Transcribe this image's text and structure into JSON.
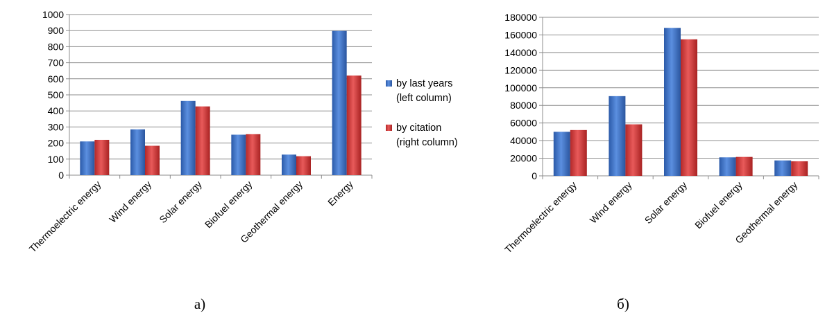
{
  "chart_data": [
    {
      "type": "bar",
      "caption": "a)",
      "categories": [
        "Thermoelectric energy",
        "Wind energy",
        "Solar energy",
        "Biofuel energy",
        "Geothermal energy",
        "Energy"
      ],
      "series": [
        {
          "name": "by last years (left column)",
          "values": [
            210,
            285,
            462,
            252,
            128,
            898
          ],
          "color": "#3a6fc4"
        },
        {
          "name": "by citation (right column)",
          "values": [
            220,
            183,
            428,
            255,
            118,
            620
          ],
          "color": "#cc3333"
        }
      ],
      "ylim": [
        0,
        1000
      ],
      "yticks": [
        0,
        100,
        200,
        300,
        400,
        500,
        600,
        700,
        800,
        900,
        1000
      ],
      "grid": true,
      "legend": {
        "placement": "right",
        "entries": [
          {
            "lines": [
              "by last years",
              "(left column)"
            ]
          },
          {
            "lines": [
              "by citation",
              "(right column)"
            ]
          }
        ]
      }
    },
    {
      "type": "bar",
      "caption": "б)",
      "categories": [
        "Thermoelectric energy",
        "Wind energy",
        "Solar energy",
        "Biofuel energy",
        "Geothermal energy"
      ],
      "series": [
        {
          "values": [
            50000,
            90500,
            168000,
            21000,
            17500
          ],
          "color": "#3a6fc4"
        },
        {
          "values": [
            52000,
            58500,
            155000,
            21500,
            16500
          ],
          "color": "#cc3333"
        }
      ],
      "ylim": [
        0,
        180000
      ],
      "yticks": [
        0,
        20000,
        40000,
        60000,
        80000,
        100000,
        120000,
        140000,
        160000,
        180000
      ],
      "grid": true
    }
  ]
}
